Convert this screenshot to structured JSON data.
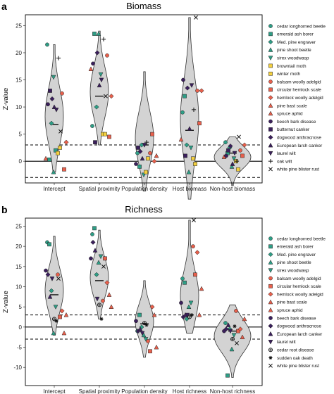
{
  "chart_data": [
    {
      "panel": "a",
      "type": "violin",
      "title": "Biomass",
      "ylabel": "Z-value",
      "ylim": [
        -4,
        27
      ],
      "yticks": [
        -5,
        0,
        5,
        10,
        15,
        20,
        25
      ],
      "reference_lines": {
        "solid": 0,
        "dashed": [
          3,
          -3
        ]
      },
      "categories": [
        "Intercept",
        "Spatial proximity",
        "Population density",
        "Host biomass",
        "Non-host biomass"
      ],
      "medians": [
        6.8,
        12,
        3,
        5.7,
        1.5
      ],
      "violin_ranges": [
        [
          -2,
          21.5
        ],
        [
          3,
          24
        ],
        [
          -5.5,
          16.5
        ],
        [
          -7,
          26.5
        ],
        [
          -4.5,
          4.5
        ]
      ],
      "legend": [
        {
          "label": "cedar longhorned beetle",
          "shape": "circle",
          "color": "#2e9e86"
        },
        {
          "label": "emerald ash borer",
          "shape": "square",
          "color": "#2e9e86"
        },
        {
          "label": "Med. pine engraver",
          "shape": "diamond",
          "color": "#2e9e86"
        },
        {
          "label": "pine shoot beetle",
          "shape": "triangle-up",
          "color": "#2e9e86"
        },
        {
          "label": "sirex woodwasp",
          "shape": "triangle-down",
          "color": "#2e9e86"
        },
        {
          "label": "browntail moth",
          "shape": "square",
          "color": "#f4d03f"
        },
        {
          "label": "winter moth",
          "shape": "square",
          "color": "#f4d03f"
        },
        {
          "label": "balsam woolly adelgid",
          "shape": "circle",
          "color": "#e8604c"
        },
        {
          "label": "circular hemlock scale",
          "shape": "square",
          "color": "#e8604c"
        },
        {
          "label": "hemlock woolly adelgid",
          "shape": "diamond",
          "color": "#e8604c"
        },
        {
          "label": "pine bast scale",
          "shape": "triangle-up",
          "color": "#e8604c"
        },
        {
          "label": "spruce aphid",
          "shape": "triangle-up",
          "color": "#e8604c"
        },
        {
          "label": "beech bark disease",
          "shape": "circle",
          "color": "#3b1f5c"
        },
        {
          "label": "butternut canker",
          "shape": "square",
          "color": "#3b1f5c"
        },
        {
          "label": "dogwood anthracnose",
          "shape": "diamond",
          "color": "#3b1f5c"
        },
        {
          "label": "European larch canker",
          "shape": "triangle-up",
          "color": "#3b1f5c"
        },
        {
          "label": "laurel wilt",
          "shape": "triangle-down",
          "color": "#3b1f5c"
        },
        {
          "label": "oak wilt",
          "shape": "plus",
          "color": "#111111"
        },
        {
          "label": "white pine blister rust",
          "shape": "cross",
          "color": "#111111"
        }
      ],
      "points": [
        [
          [
            0,
            21.5,
            0
          ],
          [
            1,
            0.3,
            1
          ],
          [
            2,
            7,
            2
          ],
          [
            3,
            -2,
            3
          ],
          [
            1,
            2,
            4
          ],
          [
            5,
            1.5,
            5
          ],
          [
            6,
            2.5,
            6
          ],
          [
            7,
            12.5,
            7
          ],
          [
            8,
            -1.5,
            8
          ],
          [
            9,
            3.5,
            9
          ],
          [
            10,
            0.5,
            10
          ],
          [
            12,
            10.5,
            11
          ],
          [
            13,
            13,
            12
          ],
          [
            14,
            11.5,
            13
          ],
          [
            15,
            10,
            14
          ],
          [
            16,
            9.5,
            15
          ],
          [
            17,
            19,
            16
          ],
          [
            18,
            5.5,
            17
          ],
          [
            4,
            15.5,
            3
          ]
        ],
        [
          [
            0,
            6.5,
            0
          ],
          [
            1,
            23.5,
            1
          ],
          [
            2,
            10,
            2
          ],
          [
            3,
            23.5,
            3
          ],
          [
            4,
            16,
            4
          ],
          [
            5,
            5,
            5
          ],
          [
            6,
            5,
            6
          ],
          [
            7,
            19.5,
            7
          ],
          [
            8,
            4.5,
            8
          ],
          [
            9,
            12,
            9
          ],
          [
            10,
            17,
            10
          ],
          [
            12,
            18,
            11
          ],
          [
            13,
            3.5,
            12
          ],
          [
            14,
            20,
            13
          ],
          [
            15,
            14,
            14
          ],
          [
            16,
            15,
            15
          ],
          [
            17,
            22.5,
            16
          ],
          [
            18,
            12,
            17
          ]
        ],
        [
          [
            0,
            1.5,
            0
          ],
          [
            1,
            -1,
            1
          ],
          [
            2,
            3,
            2
          ],
          [
            4,
            -2.5,
            3
          ],
          [
            5,
            -2,
            4
          ],
          [
            6,
            0.5,
            5
          ],
          [
            7,
            1.5,
            6
          ],
          [
            8,
            5,
            7
          ],
          [
            9,
            0,
            8
          ],
          [
            10,
            1,
            9
          ],
          [
            12,
            -0.5,
            10
          ],
          [
            13,
            2.5,
            11
          ],
          [
            14,
            1.8,
            12
          ],
          [
            15,
            0.5,
            13
          ],
          [
            16,
            3,
            14
          ],
          [
            17,
            3.5,
            15
          ]
        ],
        [
          [
            0,
            9,
            0
          ],
          [
            1,
            12,
            1
          ],
          [
            2,
            3,
            2
          ],
          [
            3,
            -2,
            3
          ],
          [
            4,
            2.5,
            4
          ],
          [
            5,
            0.5,
            5
          ],
          [
            6,
            -0.5,
            6
          ],
          [
            7,
            13,
            7
          ],
          [
            8,
            7,
            8
          ],
          [
            9,
            13,
            9
          ],
          [
            10,
            4,
            10
          ],
          [
            12,
            15,
            11
          ],
          [
            13,
            1,
            12
          ],
          [
            14,
            13.5,
            13
          ],
          [
            15,
            6,
            14
          ],
          [
            16,
            14,
            15
          ],
          [
            17,
            9.5,
            16
          ],
          [
            18,
            26.5,
            17
          ]
        ],
        [
          [
            0,
            3.5,
            0
          ],
          [
            1,
            1.5,
            1
          ],
          [
            2,
            2.5,
            2
          ],
          [
            3,
            -1,
            3
          ],
          [
            4,
            0.5,
            4
          ],
          [
            5,
            0,
            5
          ],
          [
            6,
            -1.5,
            6
          ],
          [
            7,
            2,
            7
          ],
          [
            8,
            1,
            8
          ],
          [
            9,
            3,
            9
          ],
          [
            10,
            0.8,
            10
          ],
          [
            12,
            1,
            11
          ],
          [
            13,
            2,
            12
          ],
          [
            14,
            2.8,
            13
          ],
          [
            15,
            -0.5,
            14
          ],
          [
            16,
            1.5,
            15
          ],
          [
            17,
            0,
            16
          ],
          [
            18,
            4.5,
            17
          ]
        ]
      ]
    },
    {
      "panel": "b",
      "type": "violin",
      "title": "Richness",
      "ylabel": "Z-value",
      "ylim": [
        -14.5,
        27
      ],
      "yticks": [
        -10,
        -5,
        0,
        5,
        10,
        15,
        20,
        25
      ],
      "reference_lines": {
        "solid": 0,
        "dashed": [
          3,
          -3
        ]
      },
      "categories": [
        "Intercept",
        "Spatial proximity",
        "Population density",
        "Host richness",
        "Non-host richness"
      ],
      "medians": [
        8,
        11.5,
        0.8,
        3,
        -1
      ],
      "violin_ranges": [
        [
          -2,
          22.5
        ],
        [
          2,
          24
        ],
        [
          -7.5,
          11.5
        ],
        [
          -1.5,
          26.5
        ],
        [
          -12.5,
          5.5
        ]
      ],
      "legend": [
        {
          "label": "cedar longhorned beetle",
          "shape": "circle",
          "color": "#2e9e86"
        },
        {
          "label": "emerald ash borer",
          "shape": "square",
          "color": "#2e9e86"
        },
        {
          "label": "Med. pine engraver",
          "shape": "diamond",
          "color": "#2e9e86"
        },
        {
          "label": "pine shoot beetle",
          "shape": "triangle-up",
          "color": "#2e9e86"
        },
        {
          "label": "sirex woodwasp",
          "shape": "triangle-down",
          "color": "#2e9e86"
        },
        {
          "label": "balsam woolly adelgid",
          "shape": "circle",
          "color": "#e8604c"
        },
        {
          "label": "circular hemlock scale",
          "shape": "square",
          "color": "#e8604c"
        },
        {
          "label": "hemlock woolly adelgid",
          "shape": "diamond",
          "color": "#e8604c"
        },
        {
          "label": "pine bast scale",
          "shape": "triangle-up",
          "color": "#e8604c"
        },
        {
          "label": "spruce aphid",
          "shape": "triangle-up",
          "color": "#e8604c"
        },
        {
          "label": "beech bark disease",
          "shape": "circle",
          "color": "#3b1f5c"
        },
        {
          "label": "dogwood anthracnose",
          "shape": "diamond",
          "color": "#3b1f5c"
        },
        {
          "label": "European larch canker",
          "shape": "triangle-up",
          "color": "#3b1f5c"
        },
        {
          "label": "laurel wilt",
          "shape": "triangle-down",
          "color": "#3b1f5c"
        },
        {
          "label": "cedar root disease",
          "shape": "circled-plus",
          "color": "#111111"
        },
        {
          "label": "sudden oak death",
          "shape": "asterisk",
          "color": "#111111"
        },
        {
          "label": "white pine blister rust",
          "shape": "cross",
          "color": "#111111"
        }
      ],
      "points": [
        [
          [
            0,
            21,
            0
          ],
          [
            1,
            20.5,
            1
          ],
          [
            2,
            9,
            2
          ],
          [
            3,
            -1.5,
            3
          ],
          [
            4,
            5,
            4
          ],
          [
            5,
            13,
            5
          ],
          [
            6,
            2.5,
            6
          ],
          [
            7,
            4,
            7
          ],
          [
            8,
            -1.5,
            8
          ],
          [
            9,
            3,
            9
          ],
          [
            10,
            14,
            10
          ],
          [
            11,
            13,
            11
          ],
          [
            12,
            7.5,
            12
          ],
          [
            13,
            12,
            13
          ],
          [
            14,
            2,
            14
          ],
          [
            15,
            1.5,
            15
          ],
          [
            16,
            12,
            16
          ]
        ],
        [
          [
            0,
            23,
            0
          ],
          [
            1,
            24.5,
            1
          ],
          [
            2,
            13,
            2
          ],
          [
            3,
            16,
            3
          ],
          [
            4,
            17.5,
            4
          ],
          [
            5,
            6.5,
            5
          ],
          [
            6,
            17,
            6
          ],
          [
            7,
            11,
            7
          ],
          [
            8,
            8,
            8
          ],
          [
            9,
            5,
            9
          ],
          [
            10,
            17,
            10
          ],
          [
            11,
            21,
            11
          ],
          [
            12,
            19,
            12
          ],
          [
            13,
            7,
            13
          ],
          [
            14,
            5.5,
            14
          ],
          [
            15,
            2,
            15
          ],
          [
            16,
            15,
            16
          ]
        ],
        [
          [
            0,
            -1,
            0
          ],
          [
            1,
            3,
            1
          ],
          [
            2,
            0,
            2
          ],
          [
            3,
            -2,
            3
          ],
          [
            4,
            -3,
            4
          ],
          [
            5,
            -3.5,
            5
          ],
          [
            6,
            -6,
            6
          ],
          [
            7,
            5,
            7
          ],
          [
            8,
            3,
            8
          ],
          [
            9,
            -5,
            9
          ],
          [
            10,
            1.5,
            10
          ],
          [
            11,
            -1,
            11
          ],
          [
            12,
            -0.5,
            12
          ],
          [
            13,
            -1.5,
            13
          ],
          [
            14,
            1,
            14
          ],
          [
            15,
            0.5,
            15
          ]
        ],
        [
          [
            0,
            12,
            0
          ],
          [
            1,
            11,
            1
          ],
          [
            2,
            2,
            2
          ],
          [
            3,
            5,
            3
          ],
          [
            4,
            6,
            4
          ],
          [
            5,
            20,
            5
          ],
          [
            6,
            13,
            6
          ],
          [
            7,
            18.5,
            7
          ],
          [
            8,
            3,
            8
          ],
          [
            9,
            9.5,
            9
          ],
          [
            10,
            6,
            10
          ],
          [
            11,
            2.5,
            11
          ],
          [
            12,
            3,
            12
          ],
          [
            13,
            3,
            13
          ],
          [
            14,
            2.5,
            14
          ],
          [
            15,
            3,
            15
          ],
          [
            16,
            26.5,
            16
          ]
        ],
        [
          [
            0,
            1,
            0
          ],
          [
            1,
            -12,
            1
          ],
          [
            2,
            -0.5,
            2
          ],
          [
            3,
            -5.5,
            3
          ],
          [
            4,
            -2,
            4
          ],
          [
            5,
            4,
            5
          ],
          [
            6,
            -1,
            6
          ],
          [
            7,
            -0.5,
            7
          ],
          [
            8,
            -2.5,
            8
          ],
          [
            9,
            2,
            9
          ],
          [
            10,
            -1,
            10
          ],
          [
            11,
            -0.5,
            11
          ],
          [
            12,
            0.5,
            12
          ],
          [
            13,
            -1,
            13
          ],
          [
            14,
            -3,
            14
          ],
          [
            15,
            0.2,
            15
          ],
          [
            16,
            -4,
            16
          ]
        ]
      ]
    }
  ],
  "page": {
    "letter_a": "a",
    "letter_b": "b"
  }
}
